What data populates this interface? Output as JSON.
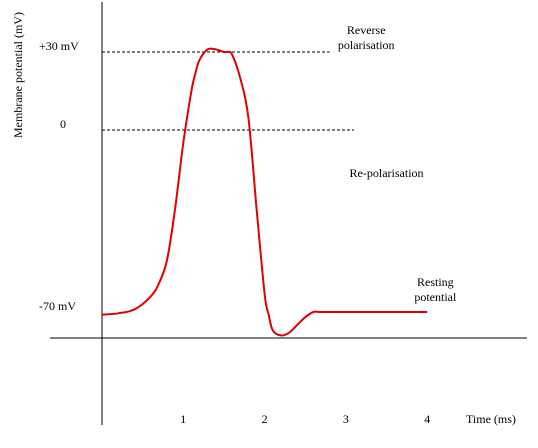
{
  "chart_data": {
    "type": "line",
    "title": "",
    "xlabel": "Time (ms)",
    "ylabel": "Membrane potential (mV)",
    "x_ticks": [
      1,
      2,
      3,
      4
    ],
    "x_tick_labels": [
      "1",
      "2",
      "3",
      "4"
    ],
    "y_tick_labels": [
      "+30 mV",
      "0",
      "-70 mV"
    ],
    "xlim": [
      0,
      4.9
    ],
    "ylim": [
      -90,
      60
    ],
    "reference_lines": [
      {
        "y": 30,
        "x_start": 0,
        "x_end": 2.8,
        "style": "dashed"
      },
      {
        "y": 0,
        "x_start": 0,
        "x_end": 3.1,
        "style": "dashed"
      }
    ],
    "annotations": [
      {
        "lines": [
          "Reverse",
          "polarisation"
        ],
        "x": 3.25,
        "y": 37
      },
      {
        "lines": [
          "Re-polarisation"
        ],
        "x": 3.5,
        "y": -18
      },
      {
        "lines": [
          "Resting",
          "potential"
        ],
        "x": 4.1,
        "y": -60
      }
    ],
    "series": [
      {
        "color": "#e00000",
        "x": [
          0,
          0.2,
          0.4,
          0.6,
          0.7,
          0.8,
          0.9,
          1.0,
          1.1,
          1.15,
          1.2,
          1.3,
          1.4,
          1.5,
          1.55,
          1.6,
          1.7,
          1.8,
          1.9,
          2.0,
          2.05,
          2.1,
          2.2,
          2.3,
          2.4,
          2.5,
          2.6,
          2.7,
          3.0,
          3.5,
          4.0
        ],
        "y": [
          -71,
          -70.5,
          -69,
          -64,
          -59,
          -50,
          -30,
          -5,
          15,
          22,
          27,
          31,
          31,
          30,
          30,
          29,
          20,
          5,
          -30,
          -63,
          -71,
          -77,
          -79,
          -78,
          -75,
          -72,
          -70,
          -70,
          -70,
          -70,
          -70
        ]
      }
    ]
  }
}
